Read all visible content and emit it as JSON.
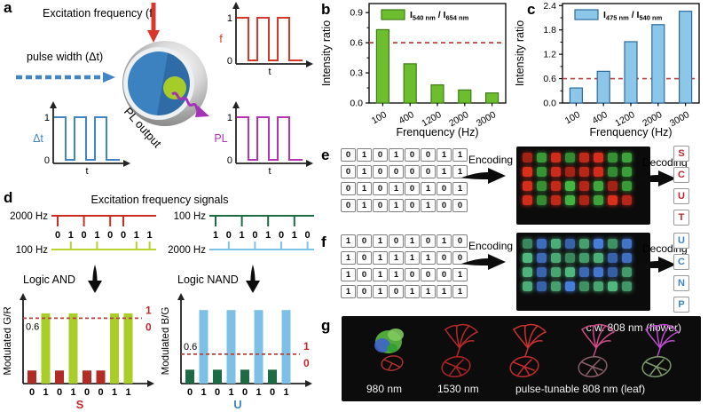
{
  "labels": {
    "a": "a",
    "b": "b",
    "c": "c",
    "d": "d",
    "e": "e",
    "f": "f",
    "g": "g"
  },
  "panel_a": {
    "excitation_label": "Excitation frequency (f)",
    "pulse_width_label": "pulse width (Δt)",
    "pl_output_label": "PL output",
    "waveforms": [
      {
        "name": "f",
        "color": "#d8382a",
        "y_high": "1",
        "y_low": "0",
        "xlabel": "t"
      },
      {
        "name": "Δt",
        "color": "#4285c4",
        "y_high": "1",
        "y_low": "0",
        "xlabel": "t"
      },
      {
        "name": "PL",
        "color": "#b434b4",
        "y_high": "1",
        "y_low": "0",
        "xlabel": "t"
      }
    ]
  },
  "chart_data": [
    {
      "id": "b",
      "type": "bar",
      "categories": [
        "100",
        "400",
        "1200",
        "2000",
        "3000"
      ],
      "values": [
        0.73,
        0.39,
        0.18,
        0.13,
        0.1
      ],
      "title": "",
      "ylabel": "Intensity ratio",
      "xlabel": "Frenquency (Hz)",
      "yticks": [
        0.0,
        0.3,
        0.6,
        0.9
      ],
      "ylim": [
        0,
        0.99
      ],
      "threshold": 0.6,
      "threshold_color": "#b5433c",
      "bar_color": "#6cbe2e",
      "bar_edge": "#3f7d14",
      "grid": false,
      "legend_position": "top-left",
      "legend": {
        "base1": "I",
        "sub1": "540 nm",
        "sep": " / ",
        "base2": "I",
        "sub2": "654 nm"
      }
    },
    {
      "id": "c",
      "type": "bar",
      "categories": [
        "100",
        "400",
        "1200",
        "2000",
        "3000"
      ],
      "values": [
        0.37,
        0.78,
        1.51,
        1.93,
        2.26
      ],
      "title": "",
      "ylabel": "Intensity ratio",
      "xlabel": "Frenquency (Hz)",
      "yticks": [
        0.0,
        0.6,
        1.2,
        1.8,
        2.4
      ],
      "ylim": [
        0,
        2.45
      ],
      "threshold": 0.6,
      "threshold_color": "#b5433c",
      "bar_color": "#8cc6e8",
      "bar_edge": "#2d6b9e",
      "grid": false,
      "legend_position": "top-left",
      "legend": {
        "base1": "I",
        "sub1": "475 nm",
        "sep": " / ",
        "base2": "I",
        "sub2": "540 nm"
      }
    },
    {
      "id": "d_gr",
      "type": "bar",
      "ylabel": "Modulated G/R",
      "bits": [
        0,
        1,
        0,
        1,
        0,
        0,
        1,
        1
      ],
      "tall": 0.86,
      "short": 0.16,
      "threshold": 0.8,
      "threshold_label": "0.6",
      "label_below_line": true,
      "one_label": "1",
      "zero_label": "0",
      "threshold_color": "#b5433c",
      "zero_color": "#b02c25",
      "one_color": "#a9ce2a",
      "letter": "S",
      "letter_color": "#c1272d"
    },
    {
      "id": "d_bg",
      "type": "bar",
      "ylabel": "Modulated B/G",
      "bits": [
        0,
        1,
        0,
        1,
        0,
        1,
        0,
        1
      ],
      "tall": 0.9,
      "short": 0.17,
      "threshold": 0.36,
      "threshold_label": "0.6",
      "label_below_line": false,
      "one_label": "1",
      "zero_label": "0",
      "threshold_color": "#b5433c",
      "zero_color": "#1d6b45",
      "one_color": "#7cc0e5",
      "letter": "U",
      "letter_color": "#3d86c6"
    }
  ],
  "panel_d": {
    "title": "Excitation frequency signals",
    "left": {
      "top_freq": "2000 Hz",
      "top_color": "#cc2d23",
      "top_ticks": [
        1,
        0,
        1,
        0,
        1,
        1,
        0,
        0
      ],
      "bits": [
        0,
        1,
        0,
        1,
        0,
        0,
        1,
        1
      ],
      "bottom_freq": "100 Hz",
      "bottom_color": "#b7d32c",
      "bottom_ticks": [
        0,
        1,
        0,
        1,
        0,
        0,
        1,
        1
      ],
      "logic": "Logic AND"
    },
    "right": {
      "top_freq": "100 Hz",
      "top_color": "#1b6b43",
      "top_ticks": [
        1,
        0,
        1,
        0,
        1,
        0,
        1,
        0
      ],
      "bits": [
        1,
        0,
        1,
        0,
        1,
        0,
        1,
        0
      ],
      "bottom_freq": "2000 Hz",
      "bottom_color": "#7fc2e8",
      "bottom_ticks": [
        0,
        1,
        0,
        1,
        0,
        1,
        0,
        1
      ],
      "logic": "Logic NAND"
    }
  },
  "panel_e": {
    "rows": [
      [
        0,
        1,
        0,
        1,
        0,
        0,
        1,
        1
      ],
      [
        0,
        1,
        0,
        0,
        0,
        0,
        1,
        1
      ],
      [
        0,
        1,
        0,
        1,
        0,
        1,
        0,
        1
      ],
      [
        0,
        1,
        0,
        1,
        0,
        1,
        0,
        0
      ]
    ],
    "encoding_label": "Encoding",
    "decoding_label": "Decoding",
    "letters": [
      "S",
      "C",
      "U",
      "T"
    ],
    "letter_color": "#c1272d",
    "dot_color_0": "#c52a1b",
    "dot_color_1": "#3da33c"
  },
  "panel_f": {
    "rows": [
      [
        1,
        0,
        1,
        0,
        1,
        0,
        1,
        0
      ],
      [
        1,
        0,
        1,
        1,
        1,
        1,
        0,
        0
      ],
      [
        1,
        0,
        1,
        1,
        0,
        0,
        0,
        1
      ],
      [
        1,
        0,
        1,
        0,
        1,
        1,
        1,
        1
      ]
    ],
    "encoding_label": "Encoding",
    "decoding_label": "Decoding",
    "letters": [
      "U",
      "C",
      "N",
      "P"
    ],
    "letter_color": "#3d86c6",
    "dot_color_0": "#4273c6",
    "dot_color_1": "#49a472"
  },
  "panel_g": {
    "top_label": "c.w. 808 nm (flower)",
    "labels": [
      "980 nm",
      "1530 nm",
      "pulse-tunable 808 nm (leaf)"
    ],
    "flowers": [
      {
        "type": "filled",
        "petal": "#56b13e",
        "accent": "#3f63cc",
        "leaf": "#b63232"
      },
      {
        "type": "outline",
        "color": "#b82828",
        "leaf": "#b02424"
      },
      {
        "type": "outline",
        "color": "#cc3030",
        "leaf": "#c42c2c"
      },
      {
        "type": "outline",
        "color": "#cc4b86",
        "leaf": "#8a5f68"
      },
      {
        "type": "outline",
        "color": "#bb4ccc",
        "leaf": "#7d996d"
      }
    ]
  }
}
